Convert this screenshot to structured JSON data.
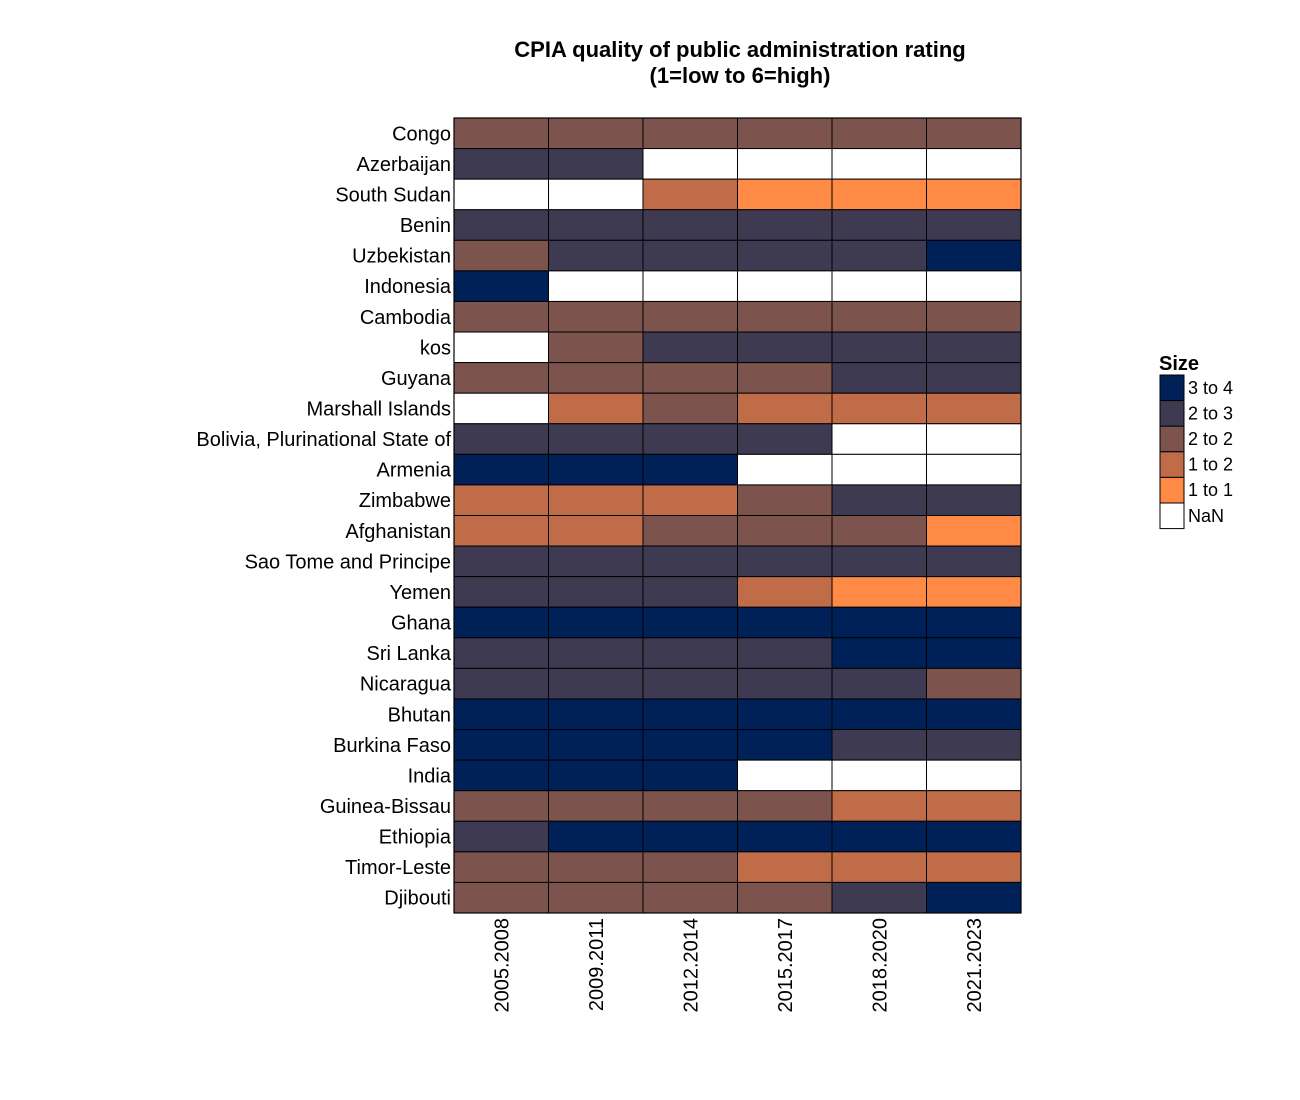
{
  "chart_data": {
    "type": "heatmap",
    "title": "CPIA quality of public administration rating",
    "subtitle": "(1=low to 6=high)",
    "columns": [
      "2005.2008",
      "2009.2011",
      "2012.2014",
      "2015.2017",
      "2018.2020",
      "2021.2023"
    ],
    "rows": [
      {
        "label": "Congo",
        "values": [
          "2 to 2",
          "2 to 2",
          "2 to 2",
          "2 to 2",
          "2 to 2",
          "2 to 2"
        ]
      },
      {
        "label": "Azerbaijan",
        "values": [
          "2 to 3",
          "2 to 3",
          "NaN",
          "NaN",
          "NaN",
          "NaN"
        ]
      },
      {
        "label": "South Sudan",
        "values": [
          "NaN",
          "NaN",
          "1 to 2",
          "1 to 1",
          "1 to 1",
          "1 to 1"
        ]
      },
      {
        "label": "Benin",
        "values": [
          "2 to 3",
          "2 to 3",
          "2 to 3",
          "2 to 3",
          "2 to 3",
          "2 to 3"
        ]
      },
      {
        "label": "Uzbekistan",
        "values": [
          "2 to 2",
          "2 to 3",
          "2 to 3",
          "2 to 3",
          "2 to 3",
          "3 to 4"
        ]
      },
      {
        "label": "Indonesia",
        "values": [
          "3 to 4",
          "NaN",
          "NaN",
          "NaN",
          "NaN",
          "NaN"
        ]
      },
      {
        "label": "Cambodia",
        "values": [
          "2 to 2",
          "2 to 2",
          "2 to 2",
          "2 to 2",
          "2 to 2",
          "2 to 2"
        ]
      },
      {
        "label": "kos",
        "values": [
          "NaN",
          "2 to 2",
          "2 to 3",
          "2 to 3",
          "2 to 3",
          "2 to 3"
        ]
      },
      {
        "label": "Guyana",
        "values": [
          "2 to 2",
          "2 to 2",
          "2 to 2",
          "2 to 2",
          "2 to 3",
          "2 to 3"
        ]
      },
      {
        "label": "Marshall Islands",
        "values": [
          "NaN",
          "1 to 2",
          "2 to 2",
          "1 to 2",
          "1 to 2",
          "1 to 2"
        ]
      },
      {
        "label": "Bolivia, Plurinational State of",
        "values": [
          "2 to 3",
          "2 to 3",
          "2 to 3",
          "2 to 3",
          "NaN",
          "NaN"
        ]
      },
      {
        "label": "Armenia",
        "values": [
          "3 to 4",
          "3 to 4",
          "3 to 4",
          "NaN",
          "NaN",
          "NaN"
        ]
      },
      {
        "label": "Zimbabwe",
        "values": [
          "1 to 2",
          "1 to 2",
          "1 to 2",
          "2 to 2",
          "2 to 3",
          "2 to 3"
        ]
      },
      {
        "label": "Afghanistan",
        "values": [
          "1 to 2",
          "1 to 2",
          "2 to 2",
          "2 to 2",
          "2 to 2",
          "1 to 1"
        ]
      },
      {
        "label": "Sao Tome and Principe",
        "values": [
          "2 to 3",
          "2 to 3",
          "2 to 3",
          "2 to 3",
          "2 to 3",
          "2 to 3"
        ]
      },
      {
        "label": "Yemen",
        "values": [
          "2 to 3",
          "2 to 3",
          "2 to 3",
          "1 to 2",
          "1 to 1",
          "1 to 1"
        ]
      },
      {
        "label": "Ghana",
        "values": [
          "3 to 4",
          "3 to 4",
          "3 to 4",
          "3 to 4",
          "3 to 4",
          "3 to 4"
        ]
      },
      {
        "label": "Sri Lanka",
        "values": [
          "2 to 3",
          "2 to 3",
          "2 to 3",
          "2 to 3",
          "3 to 4",
          "3 to 4"
        ]
      },
      {
        "label": "Nicaragua",
        "values": [
          "2 to 3",
          "2 to 3",
          "2 to 3",
          "2 to 3",
          "2 to 3",
          "2 to 2"
        ]
      },
      {
        "label": "Bhutan",
        "values": [
          "3 to 4",
          "3 to 4",
          "3 to 4",
          "3 to 4",
          "3 to 4",
          "3 to 4"
        ]
      },
      {
        "label": "Burkina Faso",
        "values": [
          "3 to 4",
          "3 to 4",
          "3 to 4",
          "3 to 4",
          "2 to 3",
          "2 to 3"
        ]
      },
      {
        "label": "India",
        "values": [
          "3 to 4",
          "3 to 4",
          "3 to 4",
          "NaN",
          "NaN",
          "NaN"
        ]
      },
      {
        "label": "Guinea-Bissau",
        "values": [
          "2 to 2",
          "2 to 2",
          "2 to 2",
          "2 to 2",
          "1 to 2",
          "1 to 2"
        ]
      },
      {
        "label": "Ethiopia",
        "values": [
          "2 to 3",
          "3 to 4",
          "3 to 4",
          "3 to 4",
          "3 to 4",
          "3 to 4"
        ]
      },
      {
        "label": "Timor-Leste",
        "values": [
          "2 to 2",
          "2 to 2",
          "2 to 2",
          "1 to 2",
          "1 to 2",
          "1 to 2"
        ]
      },
      {
        "label": "Djibouti",
        "values": [
          "2 to 2",
          "2 to 2",
          "2 to 2",
          "2 to 2",
          "2 to 3",
          "3 to 4"
        ]
      }
    ],
    "legend": {
      "title": "Size",
      "placement": "right",
      "items": [
        {
          "label": "3 to 4",
          "color": "#002157"
        },
        {
          "label": "2 to 3",
          "color": "#3e3a51"
        },
        {
          "label": "2 to 2",
          "color": "#7d544d"
        },
        {
          "label": "1 to 2",
          "color": "#c06c48"
        },
        {
          "label": "1 to 1",
          "color": "#fe8a46"
        },
        {
          "label": "NaN",
          "color": "#ffffff"
        }
      ]
    }
  }
}
